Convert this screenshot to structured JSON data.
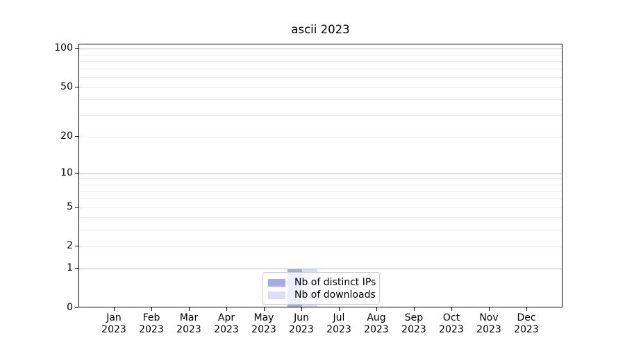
{
  "chart_data": {
    "type": "bar",
    "title": "ascii 2023",
    "categories": [
      {
        "month": "Jan",
        "year": "2023"
      },
      {
        "month": "Feb",
        "year": "2023"
      },
      {
        "month": "Mar",
        "year": "2023"
      },
      {
        "month": "Apr",
        "year": "2023"
      },
      {
        "month": "May",
        "year": "2023"
      },
      {
        "month": "Jun",
        "year": "2023"
      },
      {
        "month": "Jul",
        "year": "2023"
      },
      {
        "month": "Aug",
        "year": "2023"
      },
      {
        "month": "Sep",
        "year": "2023"
      },
      {
        "month": "Oct",
        "year": "2023"
      },
      {
        "month": "Nov",
        "year": "2023"
      },
      {
        "month": "Dec",
        "year": "2023"
      }
    ],
    "series": [
      {
        "name": "Nb of distinct IPs",
        "color": "#a6a9ef",
        "values": [
          0,
          0,
          0,
          0,
          0,
          1,
          0,
          0,
          0,
          0,
          0,
          0
        ]
      },
      {
        "name": "Nb of downloads",
        "color": "#dbddf8",
        "values": [
          0,
          0,
          0,
          0,
          0,
          1,
          0,
          0,
          0,
          0,
          0,
          0
        ]
      }
    ],
    "xlabel": "",
    "ylabel": "",
    "yscale": "log1p",
    "ylim": [
      0,
      110
    ],
    "yticks": [
      0,
      1,
      2,
      5,
      10,
      20,
      50,
      100
    ],
    "ytick_labels": [
      "0",
      "1",
      "2",
      "5",
      "10",
      "20",
      "50",
      "100"
    ],
    "major_gridlines": [
      1,
      10,
      100
    ],
    "minor_gridlines": [
      2,
      3,
      4,
      5,
      6,
      7,
      8,
      9,
      20,
      30,
      40,
      50,
      60,
      70,
      80,
      90
    ],
    "grid": "horizontal",
    "legend_position": "lower center"
  }
}
